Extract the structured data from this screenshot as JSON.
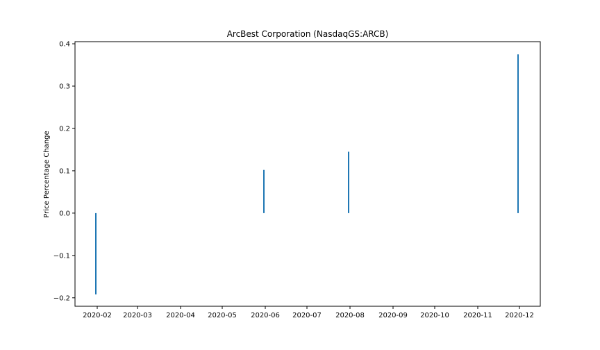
{
  "chart_data": {
    "type": "bar",
    "title": "ArcBest Corporation (NasdaqGS:ARCB)",
    "xlabel": "",
    "ylabel": "Price Percentage Change",
    "x_axis": {
      "type": "date",
      "range": [
        "2020-01-16",
        "2020-12-16"
      ],
      "ticks": [
        "2020-02",
        "2020-03",
        "2020-04",
        "2020-05",
        "2020-06",
        "2020-07",
        "2020-08",
        "2020-09",
        "2020-10",
        "2020-11",
        "2020-12"
      ]
    },
    "ylim": [
      -0.22,
      0.405
    ],
    "y_ticks": [
      -0.2,
      -0.1,
      0.0,
      0.1,
      0.2,
      0.3,
      0.4
    ],
    "y_tick_labels": [
      "−0.2",
      "−0.1",
      "0.0",
      "0.1",
      "0.2",
      "0.3",
      "0.4"
    ],
    "grid": false,
    "bar_color": "#1f77b4",
    "points": [
      {
        "x": "2020-01-31",
        "y": -0.192
      },
      {
        "x": "2020-05-31",
        "y": 0.102
      },
      {
        "x": "2020-07-31",
        "y": 0.145
      },
      {
        "x": "2020-11-30",
        "y": 0.375
      }
    ]
  }
}
